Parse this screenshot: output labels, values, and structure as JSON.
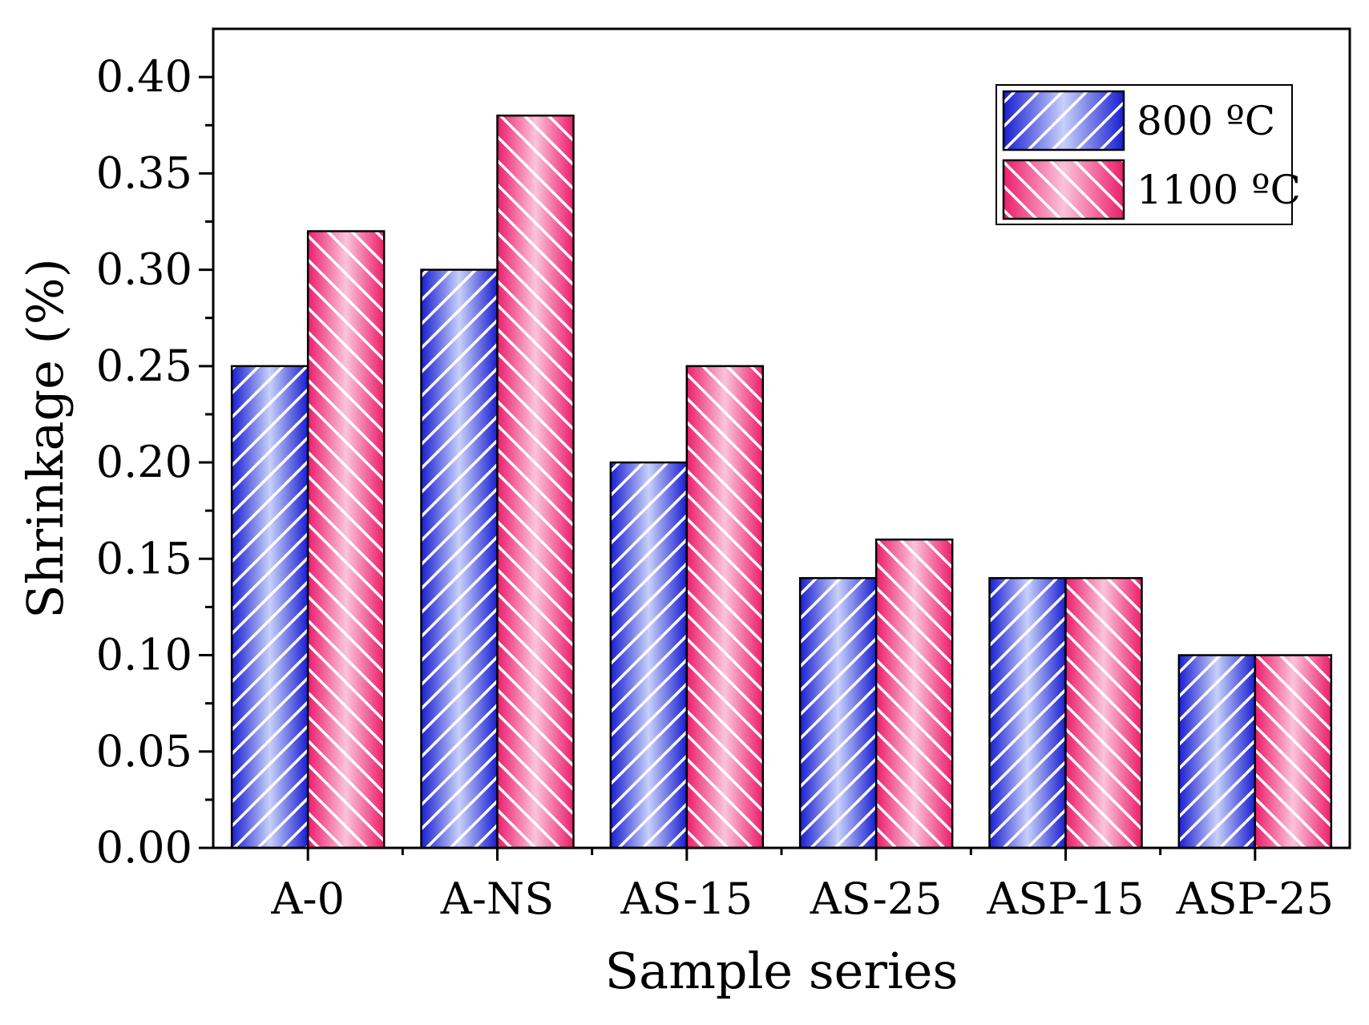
{
  "chart_data": {
    "type": "bar",
    "title": "",
    "xlabel": "Sample series",
    "ylabel": "Shrinkage (%)",
    "ylim": [
      0.0,
      0.425
    ],
    "yticks": [
      "0.00",
      "0.05",
      "0.10",
      "0.15",
      "0.20",
      "0.25",
      "0.30",
      "0.35",
      "0.40"
    ],
    "ytick_values": [
      0.0,
      0.05,
      0.1,
      0.15,
      0.2,
      0.25,
      0.3,
      0.35,
      0.4
    ],
    "categories": [
      "A-0",
      "A-NS",
      "AS-15",
      "AS-25",
      "ASP-15",
      "ASP-25"
    ],
    "series": [
      {
        "name": "800 ºC",
        "values": [
          0.25,
          0.3,
          0.2,
          0.14,
          0.14,
          0.1
        ],
        "color": "#2a2fd6"
      },
      {
        "name": "1100 ºC",
        "values": [
          0.32,
          0.38,
          0.25,
          0.16,
          0.14,
          0.1
        ],
        "color": "#ee2a77"
      }
    ],
    "grid": false,
    "legend_position": "top-right",
    "bar_pattern": "diagonal-stripes"
  }
}
